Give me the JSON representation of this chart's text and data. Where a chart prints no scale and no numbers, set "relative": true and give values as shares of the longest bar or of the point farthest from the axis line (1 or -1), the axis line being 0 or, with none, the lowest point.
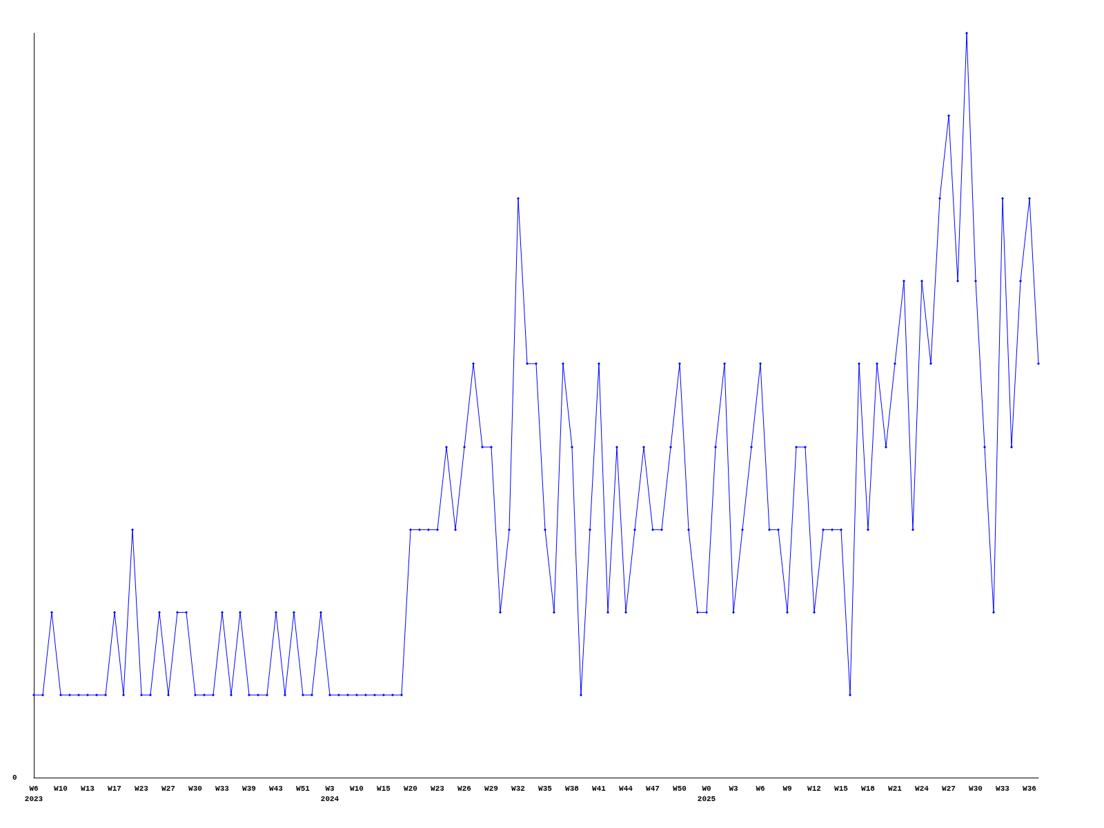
{
  "chart_data": {
    "type": "line",
    "relative": true,
    "annotations": [
      "0"
    ],
    "grid": false,
    "marker": "diamond",
    "line_style": "solid",
    "categories": [
      "W6\n2023",
      null,
      null,
      "W10",
      null,
      null,
      "W13",
      null,
      null,
      "W17",
      null,
      null,
      "W23",
      null,
      null,
      "W27",
      null,
      null,
      "W30",
      null,
      null,
      "W33",
      null,
      null,
      "W39",
      null,
      null,
      "W43",
      null,
      null,
      "W51",
      null,
      null,
      "W3\n2024",
      null,
      null,
      "W10",
      null,
      null,
      "W15",
      null,
      null,
      "W20",
      null,
      null,
      "W23",
      null,
      null,
      "W26",
      null,
      null,
      "W29",
      null,
      null,
      "W32",
      null,
      null,
      "W35",
      null,
      null,
      "W38",
      null,
      null,
      "W41",
      null,
      null,
      "W44",
      null,
      null,
      "W47",
      null,
      null,
      "W50",
      null,
      null,
      "W0\n2025",
      null,
      null,
      "W3",
      null,
      null,
      "W6",
      null,
      null,
      "W9",
      null,
      null,
      "W12",
      null,
      null,
      "W15",
      null,
      null,
      "W18",
      null,
      null,
      "W21",
      null,
      null,
      "W24",
      null,
      null,
      "W27",
      null,
      null,
      "W30",
      null,
      null,
      "W33",
      null,
      null,
      "W36",
      null
    ],
    "series": [
      {
        "color": "#0000ff",
        "values": [
          0.111,
          0.111,
          0.222,
          0.111,
          0.111,
          0.111,
          0.111,
          0.111,
          0.111,
          0.222,
          0.111,
          0.333,
          0.111,
          0.111,
          0.222,
          0.111,
          0.222,
          0.222,
          0.111,
          0.111,
          0.111,
          0.222,
          0.111,
          0.222,
          0.111,
          0.111,
          0.111,
          0.222,
          0.111,
          0.222,
          0.111,
          0.111,
          0.222,
          0.111,
          0.111,
          0.111,
          0.111,
          0.111,
          0.111,
          0.111,
          0.111,
          0.111,
          0.333,
          0.333,
          0.333,
          0.333,
          0.444,
          0.333,
          0.444,
          0.556,
          0.444,
          0.444,
          0.222,
          0.333,
          0.778,
          0.556,
          0.556,
          0.333,
          0.222,
          0.556,
          0.444,
          0.111,
          0.333,
          0.556,
          0.222,
          0.444,
          0.222,
          0.333,
          0.444,
          0.333,
          0.333,
          0.444,
          0.556,
          0.333,
          0.222,
          0.222,
          0.444,
          0.556,
          0.222,
          0.333,
          0.444,
          0.556,
          0.333,
          0.333,
          0.222,
          0.444,
          0.444,
          0.222,
          0.333,
          0.333,
          0.333,
          0.111,
          0.556,
          0.333,
          0.556,
          0.444,
          0.556,
          0.667,
          0.333,
          0.667,
          0.556,
          0.778,
          0.889,
          0.667,
          1,
          0.667,
          0.444,
          0.222,
          0.778,
          0.444,
          0.667,
          0.778,
          0.556
        ]
      }
    ]
  }
}
